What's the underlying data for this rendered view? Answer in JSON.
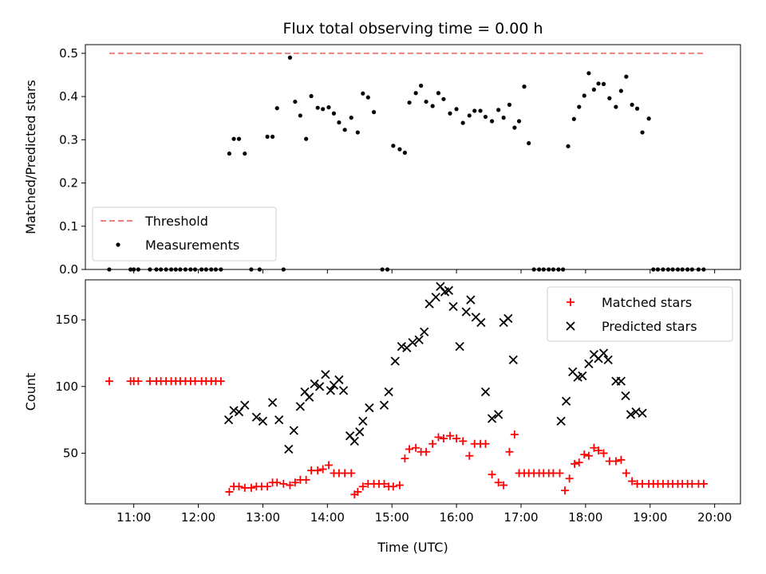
{
  "chart_data": [
    {
      "type": "scatter",
      "title": "Flux total observing time = 0.00 h",
      "ylabel": "Matched/Predicted stars",
      "xlabel": "",
      "xlim": [
        10.25,
        20.4
      ],
      "ylim": [
        0,
        0.52
      ],
      "yticks": [
        0.0,
        0.1,
        0.2,
        0.3,
        0.4,
        0.5
      ],
      "ytick_labels": [
        "0.0",
        "0.1",
        "0.2",
        "0.3",
        "0.4",
        "0.5"
      ],
      "legend_position": "lower-left",
      "threshold": {
        "name": "Threshold",
        "value": 0.5,
        "x": [
          10.62,
          19.83
        ],
        "color": "#f08080",
        "style": "dashed"
      },
      "series": [
        {
          "name": "Measurements",
          "color": "#000000",
          "marker": "dot",
          "x": [
            10.62,
            10.95,
            11.0,
            11.07,
            11.25,
            11.35,
            11.42,
            11.5,
            11.58,
            11.65,
            11.72,
            11.8,
            11.88,
            11.95,
            12.05,
            12.12,
            12.2,
            12.27,
            12.35,
            12.48,
            12.55,
            12.63,
            12.72,
            12.82,
            12.95,
            13.07,
            13.15,
            13.22,
            13.32,
            13.42,
            13.5,
            13.58,
            13.67,
            13.75,
            13.85,
            13.93,
            14.02,
            14.1,
            14.18,
            14.27,
            14.37,
            14.47,
            14.55,
            14.63,
            14.72,
            14.85,
            14.93,
            15.02,
            15.12,
            15.2,
            15.27,
            15.37,
            15.45,
            15.53,
            15.63,
            15.72,
            15.8,
            15.9,
            16.0,
            16.1,
            16.2,
            16.28,
            16.37,
            16.45,
            16.55,
            16.65,
            16.73,
            16.82,
            16.9,
            16.97,
            17.05,
            17.12,
            17.2,
            17.28,
            17.35,
            17.43,
            17.5,
            17.58,
            17.65,
            17.73,
            17.82,
            17.9,
            17.98,
            18.05,
            18.13,
            18.2,
            18.28,
            18.37,
            18.47,
            18.55,
            18.63,
            18.72,
            18.8,
            18.88,
            18.98,
            19.05,
            19.12,
            19.2,
            19.28,
            19.35,
            19.43,
            19.5,
            19.58,
            19.65,
            19.75,
            19.83
          ],
          "y": [
            0.0,
            0.0,
            0.0,
            0.0,
            0.0,
            0.0,
            0.0,
            0.0,
            0.0,
            0.0,
            0.0,
            0.0,
            0.0,
            0.0,
            0.0,
            0.0,
            0.0,
            0.0,
            0.0,
            0.268,
            0.302,
            0.302,
            0.268,
            0.0,
            0.0,
            0.307,
            0.307,
            0.373,
            0.0,
            0.49,
            0.388,
            0.356,
            0.302,
            0.401,
            0.374,
            0.371,
            0.375,
            0.361,
            0.34,
            0.323,
            0.351,
            0.317,
            0.407,
            0.398,
            0.364,
            0.0,
            0.0,
            0.286,
            0.278,
            0.27,
            0.386,
            0.408,
            0.425,
            0.388,
            0.378,
            0.408,
            0.394,
            0.361,
            0.371,
            0.339,
            0.356,
            0.367,
            0.367,
            0.353,
            0.343,
            0.369,
            0.351,
            0.381,
            0.328,
            0.343,
            0.423,
            0.292,
            0.0,
            0.0,
            0.0,
            0.0,
            0.0,
            0.0,
            0.0,
            0.285,
            0.348,
            0.376,
            0.402,
            0.454,
            0.416,
            0.43,
            0.429,
            0.396,
            0.376,
            0.413,
            0.446,
            0.381,
            0.372,
            0.317,
            0.349,
            0.0,
            0.0,
            0.0,
            0.0,
            0.0,
            0.0,
            0.0,
            0.0,
            0.0,
            0.0,
            0.0
          ]
        }
      ]
    },
    {
      "type": "scatter",
      "title": "",
      "ylabel": "Count",
      "xlabel": "Time (UTC)",
      "xlim": [
        10.25,
        20.4
      ],
      "ylim": [
        12,
        180
      ],
      "yticks": [
        50,
        100,
        150
      ],
      "ytick_labels": [
        "50",
        "100",
        "150"
      ],
      "xticks": [
        11,
        12,
        13,
        14,
        15,
        16,
        17,
        18,
        19,
        20
      ],
      "xtick_labels": [
        "11:00",
        "12:00",
        "13:00",
        "14:00",
        "15:00",
        "16:00",
        "17:00",
        "18:00",
        "19:00",
        "20:00"
      ],
      "legend_position": "upper-right",
      "series": [
        {
          "name": "Matched stars",
          "color": "#ff0000",
          "marker": "plus",
          "x": [
            10.62,
            10.95,
            11.0,
            11.07,
            11.25,
            11.35,
            11.42,
            11.5,
            11.58,
            11.65,
            11.72,
            11.8,
            11.88,
            11.95,
            12.05,
            12.12,
            12.2,
            12.27,
            12.35,
            12.48,
            12.55,
            12.63,
            12.72,
            12.82,
            12.9,
            12.98,
            13.07,
            13.15,
            13.22,
            13.32,
            13.42,
            13.5,
            13.58,
            13.67,
            13.75,
            13.85,
            13.93,
            14.02,
            14.1,
            14.18,
            14.27,
            14.37,
            14.42,
            14.47,
            14.55,
            14.63,
            14.72,
            14.8,
            14.88,
            14.95,
            15.02,
            15.12,
            15.2,
            15.27,
            15.37,
            15.45,
            15.53,
            15.63,
            15.72,
            15.8,
            15.9,
            16.0,
            16.1,
            16.2,
            16.28,
            16.37,
            16.45,
            16.55,
            16.65,
            16.73,
            16.82,
            16.9,
            16.97,
            17.05,
            17.12,
            17.2,
            17.28,
            17.35,
            17.43,
            17.5,
            17.6,
            17.68,
            17.75,
            17.83,
            17.9,
            17.98,
            18.05,
            18.13,
            18.2,
            18.28,
            18.37,
            18.47,
            18.55,
            18.63,
            18.72,
            18.8,
            18.88,
            18.98,
            19.05,
            19.12,
            19.2,
            19.28,
            19.35,
            19.43,
            19.5,
            19.58,
            19.65,
            19.75,
            19.83
          ],
          "y": [
            104,
            104,
            104,
            104,
            104,
            104,
            104,
            104,
            104,
            104,
            104,
            104,
            104,
            104,
            104,
            104,
            104,
            104,
            104,
            21,
            25,
            25,
            24,
            24,
            25,
            25,
            25,
            28,
            28,
            27,
            26,
            28,
            30,
            30,
            37,
            37,
            38,
            41,
            35,
            35,
            35,
            35,
            19,
            21,
            25,
            27,
            27,
            27,
            27,
            25,
            25,
            26,
            46,
            53,
            54,
            51,
            51,
            57,
            62,
            61,
            63,
            61,
            59,
            48,
            57,
            57,
            57,
            34,
            28,
            26,
            51,
            64,
            35,
            35,
            35,
            35,
            35,
            35,
            35,
            35,
            35,
            22,
            31,
            42,
            43,
            49,
            48,
            54,
            52,
            50,
            44,
            44,
            45,
            35,
            29,
            27,
            27,
            27,
            27,
            27,
            27,
            27,
            27,
            27,
            27,
            27,
            27,
            27,
            27
          ]
        },
        {
          "name": "Predicted stars",
          "color": "#000000",
          "marker": "x",
          "x": [
            12.47,
            12.55,
            12.63,
            12.72,
            12.9,
            13.0,
            13.15,
            13.25,
            13.4,
            13.48,
            13.58,
            13.65,
            13.72,
            13.8,
            13.88,
            13.97,
            14.05,
            14.1,
            14.18,
            14.25,
            14.35,
            14.42,
            14.5,
            14.55,
            14.65,
            14.88,
            14.95,
            15.05,
            15.15,
            15.23,
            15.32,
            15.42,
            15.5,
            15.58,
            15.68,
            15.75,
            15.82,
            15.88,
            15.95,
            16.05,
            16.15,
            16.22,
            16.3,
            16.38,
            16.45,
            16.55,
            16.65,
            16.73,
            16.8,
            16.88,
            17.62,
            17.7,
            17.8,
            17.88,
            17.95,
            18.05,
            18.13,
            18.2,
            18.28,
            18.35,
            18.47,
            18.55,
            18.62,
            18.7,
            18.78,
            18.88
          ],
          "y": [
            75,
            82,
            81,
            86,
            77,
            74,
            88,
            75,
            53,
            67,
            85,
            96,
            92,
            102,
            100,
            109,
            97,
            101,
            105,
            97,
            63,
            59,
            66,
            74,
            84,
            86,
            96,
            119,
            130,
            129,
            133,
            135,
            141,
            162,
            167,
            175,
            171,
            172,
            160,
            130,
            156,
            165,
            152,
            148,
            96,
            76,
            79,
            148,
            151,
            120,
            74,
            89,
            111,
            107,
            108,
            117,
            124,
            121,
            125,
            120,
            104,
            104,
            93,
            79,
            81,
            80
          ]
        }
      ]
    }
  ]
}
